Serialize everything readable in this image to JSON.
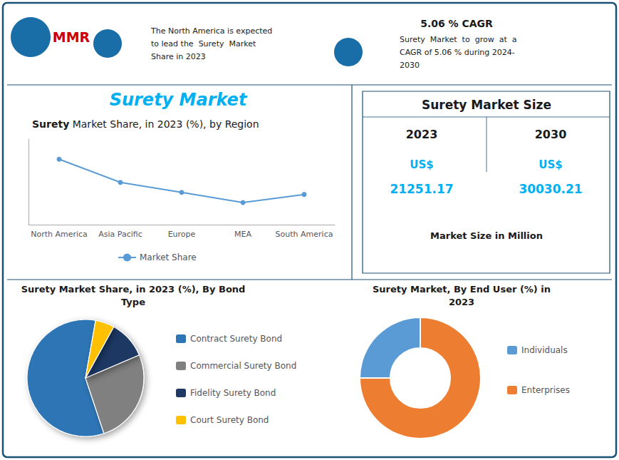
{
  "chart_data": [
    {
      "type": "line",
      "title": "Surety Market Share, in 2023 (%), by Region",
      "categories": [
        "North America",
        "Asia Pacific",
        "Europe",
        "MEA",
        "South America"
      ],
      "series": [
        {
          "name": "Market Share",
          "color": "#5b9bd5",
          "values": [
            0.85,
            0.62,
            0.52,
            0.42,
            0.5
          ],
          "marker": "circle"
        }
      ],
      "ylim": [
        0.2,
        1.05
      ],
      "grid": false,
      "tick_labels": "x",
      "legend": "bottom",
      "annotations": [
        "Surety Market",
        "MMR",
        "The North America is expected\nto lead the  Surety  Market\nShare in 2023",
        "5.06 % CAGR",
        "Surety  Market  to  grow  at  a\nCAGR of 5.06 % during 2024-\n2030",
        "Surety Market Size",
        "2023",
        "2030",
        "US$",
        "21251.17",
        "US$",
        "30030.21",
        "Market Size in Million"
      ]
    },
    {
      "type": "pie",
      "title": "Surety Market Share, in 2023 (%), By Bond\nType",
      "categories": [
        "Contract Surety Bond",
        "Commercial Surety Bond",
        "Fidelity Surety Bond",
        "Court Surety Bond"
      ],
      "values": [
        55,
        25,
        10,
        5
      ],
      "colors": [
        "#2e75b6",
        "#808080",
        "#1f3864",
        "#ffc000"
      ],
      "legend": "right"
    },
    {
      "type": "donut",
      "title": "Surety Market, By End User (%) in\n2023",
      "categories": [
        "Individuals",
        "Enterprises"
      ],
      "values": [
        25,
        75
      ],
      "colors": [
        "#5b9bd5",
        "#ed7d31"
      ],
      "legend": "right"
    }
  ]
}
